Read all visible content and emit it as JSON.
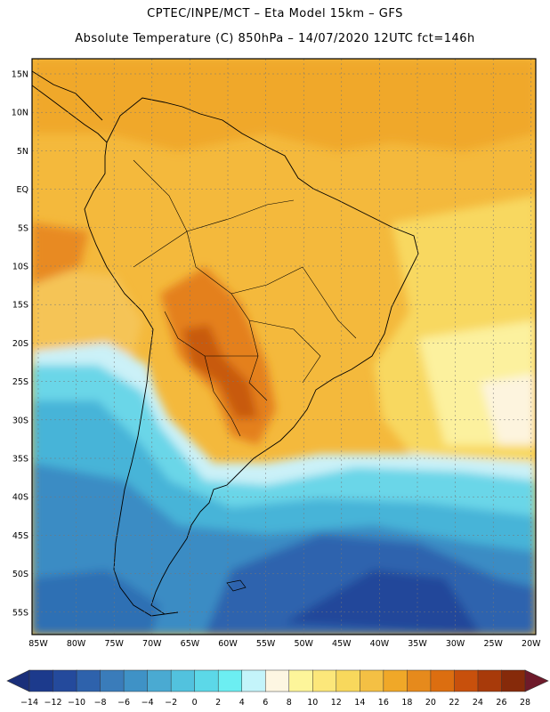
{
  "header": {
    "title_line1": "CPTEC/INPE/MCT –  Eta Model 15km – GFS",
    "title_line2": "Absolute Temperature (C) 850hPa – 14/07/2020 12UTC fct=146h"
  },
  "map": {
    "lat_labels": [
      "15N",
      "10N",
      "5N",
      "EQ",
      "5S",
      "10S",
      "15S",
      "20S",
      "25S",
      "30S",
      "35S",
      "40S",
      "45S",
      "50S",
      "55S"
    ],
    "lon_labels": [
      "85W",
      "80W",
      "75W",
      "70W",
      "65W",
      "60W",
      "55W",
      "50W",
      "45W",
      "40W",
      "35W",
      "30W",
      "25W",
      "20W"
    ]
  },
  "colorbar": {
    "labels": [
      "-14",
      "-12",
      "-10",
      "-8",
      "-6",
      "-4",
      "-2",
      "0",
      "2",
      "4",
      "6",
      "8",
      "10",
      "12",
      "14",
      "16",
      "18",
      "20",
      "22",
      "24",
      "26",
      "28"
    ],
    "colors": [
      "#1c3a8c",
      "#244a9c",
      "#2e62ac",
      "#3a7cba",
      "#3f92c6",
      "#4aaad2",
      "#52c2de",
      "#5cd8e8",
      "#6ceef2",
      "#c4f4fa",
      "#fdf6e2",
      "#fdf59a",
      "#fce77a",
      "#f8d85c",
      "#f4c044",
      "#f0a828",
      "#e68a1c",
      "#dc6e10",
      "#c8500c",
      "#a83a0a",
      "#862a0a"
    ]
  }
}
